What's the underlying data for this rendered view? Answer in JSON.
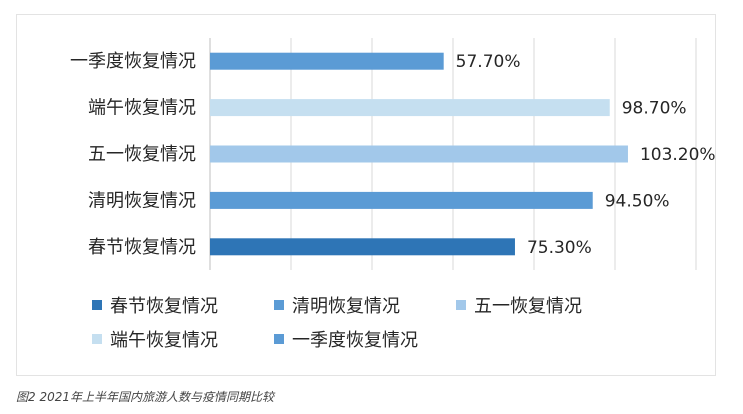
{
  "chart_data": {
    "type": "bar",
    "orientation": "horizontal",
    "categories": [
      "一季度恢复情况",
      "端午恢复情况",
      "五一恢复情况",
      "清明恢复情况",
      "春节恢复情况"
    ],
    "values": [
      57.7,
      98.7,
      103.2,
      94.5,
      75.3
    ],
    "value_labels": [
      "57.70%",
      "98.70%",
      "103.20%",
      "94.50%",
      "75.30%"
    ],
    "colors": [
      "#5b9bd5",
      "#c5dff0",
      "#a2c8ea",
      "#5b9bd5",
      "#2e75b6"
    ],
    "xlim": [
      0,
      120
    ],
    "grid": true,
    "legend": {
      "placement": "bottom",
      "items": [
        {
          "label": "春节恢复情况",
          "color": "#2e75b6"
        },
        {
          "label": "清明恢复情况",
          "color": "#5b9bd5"
        },
        {
          "label": "五一恢复情况",
          "color": "#a2c8ea"
        },
        {
          "label": "端午恢复情况",
          "color": "#c5dff0"
        },
        {
          "label": "一季度恢复情况",
          "color": "#5b9bd5"
        }
      ]
    }
  },
  "caption": "图2 2021年上半年国内旅游人数与疫情同期比较"
}
